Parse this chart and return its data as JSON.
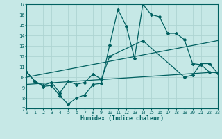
{
  "xlabel": "Humidex (Indice chaleur)",
  "bg_color": "#c6e8e6",
  "line_color": "#006060",
  "grid_color": "#aed4d2",
  "xmin": 0,
  "xmax": 23,
  "ymin": 7,
  "ymax": 17,
  "line1_x": [
    0,
    1,
    2,
    3,
    4,
    5,
    6,
    7,
    8,
    9,
    10,
    11,
    12,
    13,
    14,
    15,
    16,
    17,
    18,
    19,
    20,
    21,
    22,
    23
  ],
  "line1_y": [
    10.5,
    9.6,
    9.1,
    9.2,
    8.2,
    7.4,
    8.0,
    8.3,
    9.3,
    9.4,
    13.1,
    16.5,
    14.9,
    11.8,
    17.0,
    16.0,
    15.8,
    14.2,
    14.2,
    13.6,
    11.3,
    11.2,
    10.5,
    10.4
  ],
  "line2_x": [
    0,
    1,
    2,
    3,
    4,
    5,
    6,
    7,
    8,
    9,
    10,
    14,
    19,
    20,
    21,
    22,
    23
  ],
  "line2_y": [
    10.5,
    9.6,
    9.2,
    9.5,
    8.5,
    9.6,
    9.3,
    9.5,
    10.3,
    9.8,
    12.0,
    13.5,
    10.0,
    10.2,
    11.3,
    11.3,
    10.4
  ],
  "line3_x": [
    0,
    23
  ],
  "line3_y": [
    10.0,
    13.5
  ],
  "line4_x": [
    0,
    23
  ],
  "line4_y": [
    9.3,
    10.5
  ],
  "xtick_labels": [
    "0",
    "1",
    "2",
    "3",
    "4",
    "5",
    "6",
    "7",
    "8",
    "9",
    "10",
    "11",
    "12",
    "13",
    "14",
    "15",
    "16",
    "17",
    "18",
    "19",
    "20",
    "21",
    "22",
    "23"
  ]
}
